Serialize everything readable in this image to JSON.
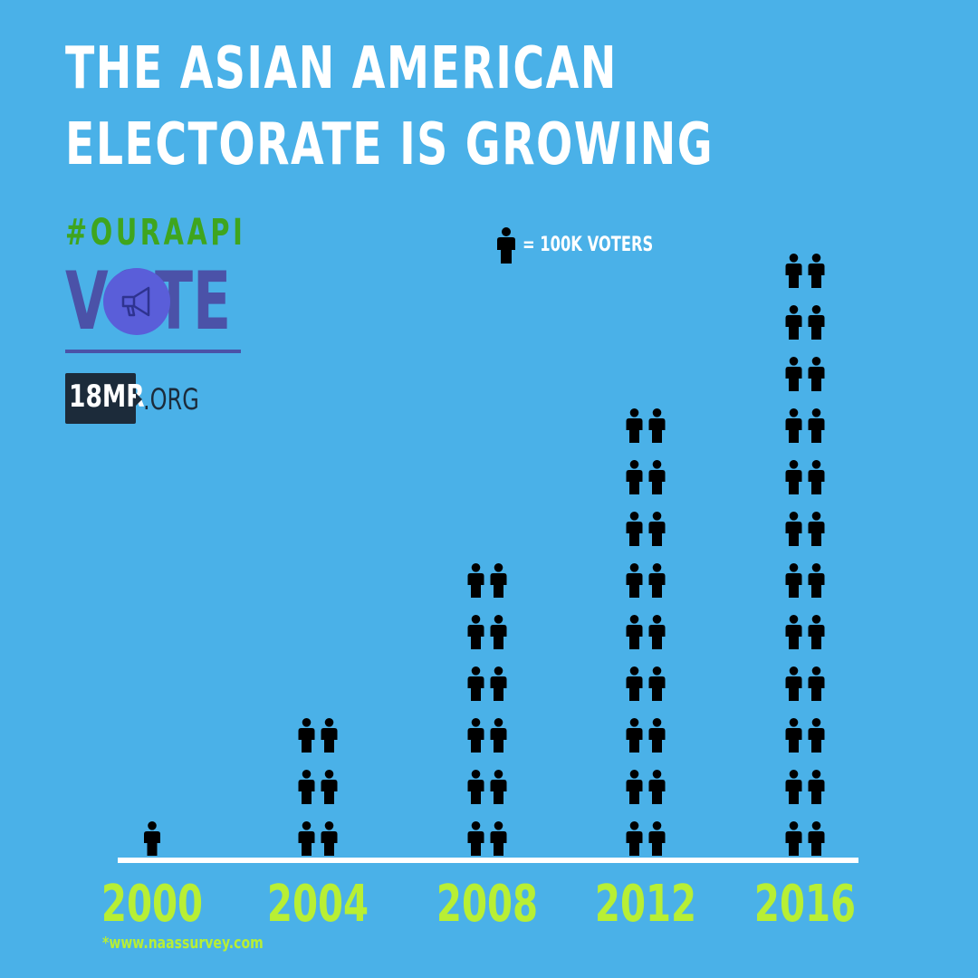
{
  "header": {
    "title_line1": "THE ASIAN AMERICAN",
    "title_line2": "ELECTORATE IS GROWING",
    "hashtag": "#OURAAPI",
    "vote_logo_text": "VOTE",
    "org_badge": "18MR",
    "org_suffix": ".ORG"
  },
  "legend": {
    "text": "= 100K VOTERS",
    "icon": "person-icon"
  },
  "source": "*www.naassurvey.com",
  "colors": {
    "background": "#4ab1e8",
    "title": "#ffffff",
    "hashtag": "#3fa51e",
    "vote_logo": "#4b52a8",
    "year_labels": "#b8ef34",
    "icons": "#000000",
    "baseline": "#ffffff"
  },
  "chart_data": {
    "type": "bar",
    "encoding": "pictograph",
    "unit": "100K voters",
    "categories": [
      "2000",
      "2004",
      "2008",
      "2012",
      "2016"
    ],
    "values": [
      1,
      6,
      12,
      18,
      24
    ]
  }
}
